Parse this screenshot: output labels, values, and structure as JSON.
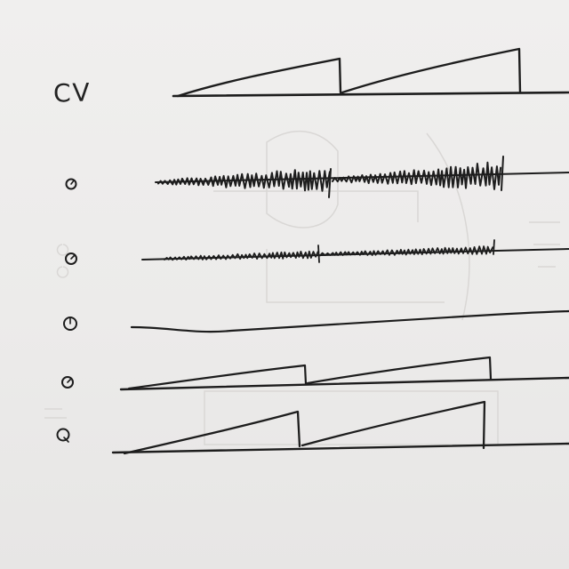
{
  "sheet": {
    "label_cv": "CV",
    "paper_color": "#eeeceb",
    "ink_color": "#1d1d1d"
  },
  "rows": [
    {
      "name": "cv-ramp",
      "type": "sawtooth",
      "knob": false
    },
    {
      "name": "noise-loud",
      "type": "noise",
      "knob": true
    },
    {
      "name": "noise-quiet",
      "type": "noise",
      "knob": true
    },
    {
      "name": "slow-line",
      "type": "line",
      "knob": true
    },
    {
      "name": "ramp-small",
      "type": "sawtooth",
      "knob": true
    },
    {
      "name": "ramp-large",
      "type": "sawtooth",
      "knob": true
    }
  ]
}
